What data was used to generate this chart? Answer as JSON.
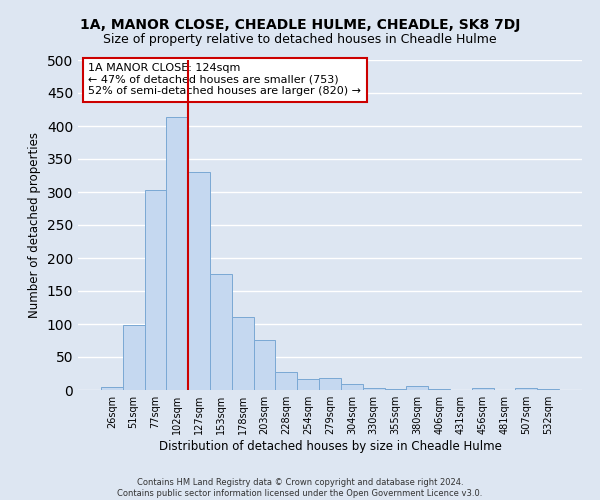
{
  "title": "1A, MANOR CLOSE, CHEADLE HULME, CHEADLE, SK8 7DJ",
  "subtitle": "Size of property relative to detached houses in Cheadle Hulme",
  "xlabel": "Distribution of detached houses by size in Cheadle Hulme",
  "ylabel": "Number of detached properties",
  "bar_labels": [
    "26sqm",
    "51sqm",
    "77sqm",
    "102sqm",
    "127sqm",
    "153sqm",
    "178sqm",
    "203sqm",
    "228sqm",
    "254sqm",
    "279sqm",
    "304sqm",
    "330sqm",
    "355sqm",
    "380sqm",
    "406sqm",
    "431sqm",
    "456sqm",
    "481sqm",
    "507sqm",
    "532sqm"
  ],
  "bar_values": [
    5,
    99,
    303,
    413,
    330,
    176,
    110,
    76,
    28,
    17,
    18,
    9,
    3,
    2,
    6,
    2,
    0,
    3,
    0,
    3,
    2
  ],
  "bar_color": "#c5d8f0",
  "bar_edge_color": "#7aa8d4",
  "background_color": "#dde6f2",
  "grid_color": "#ffffff",
  "vline_color": "#cc0000",
  "annotation_title": "1A MANOR CLOSE: 124sqm",
  "annotation_line1": "← 47% of detached houses are smaller (753)",
  "annotation_line2": "52% of semi-detached houses are larger (820) →",
  "annotation_box_color": "#ffffff",
  "annotation_border_color": "#cc0000",
  "footer_line1": "Contains HM Land Registry data © Crown copyright and database right 2024.",
  "footer_line2": "Contains public sector information licensed under the Open Government Licence v3.0.",
  "ylim": [
    0,
    500
  ],
  "yticks": [
    0,
    50,
    100,
    150,
    200,
    250,
    300,
    350,
    400,
    450,
    500
  ],
  "title_fontsize": 10,
  "subtitle_fontsize": 9
}
